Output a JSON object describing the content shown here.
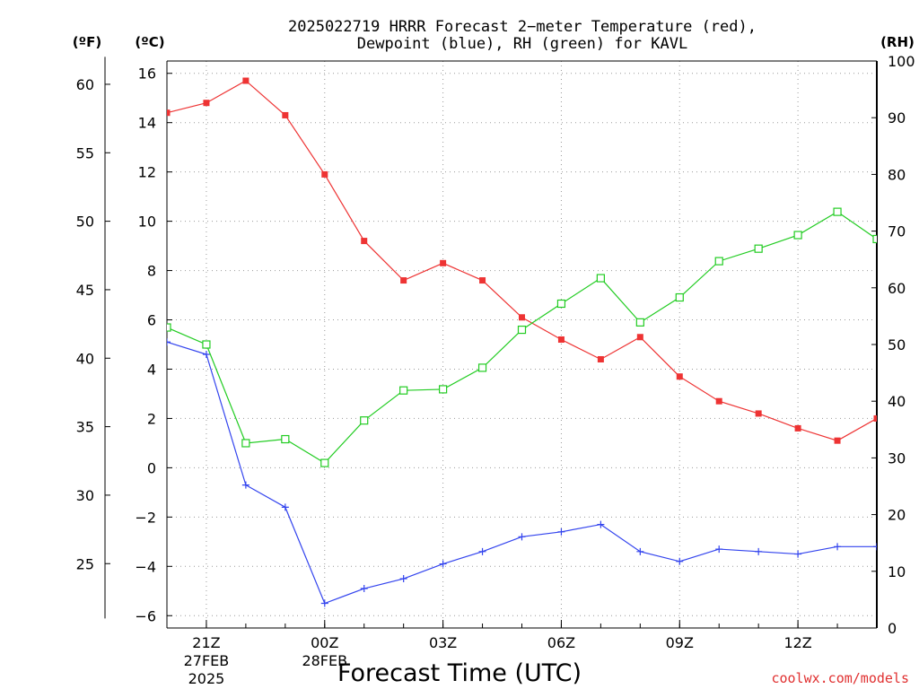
{
  "chart_data": {
    "type": "line",
    "title_line1": "2025022719 HRRR Forecast 2−meter Temperature (red),",
    "title_line2": "Dewpoint (blue), RH (green) for KAVL",
    "xlabel": "Forecast Time (UTC)",
    "unit_f": "(ºF)",
    "unit_c": "(ºC)",
    "unit_rh": "(RH)",
    "credit": "coolwx.com/models",
    "x_hours": [
      20,
      21,
      22,
      23,
      24,
      25,
      26,
      27,
      28,
      29,
      30,
      31,
      32,
      33,
      34,
      35,
      36,
      37,
      38
    ],
    "x_ticks": [
      {
        "h": 21,
        "label": "21Z"
      },
      {
        "h": 24,
        "label": "00Z"
      },
      {
        "h": 27,
        "label": "03Z"
      },
      {
        "h": 30,
        "label": "06Z"
      },
      {
        "h": 33,
        "label": "09Z"
      },
      {
        "h": 36,
        "label": "12Z"
      }
    ],
    "date_labels": [
      {
        "h": 21,
        "lines": [
          "27FEB",
          "2025"
        ]
      },
      {
        "h": 24,
        "lines": [
          "28FEB"
        ]
      }
    ],
    "x_range": [
      20,
      38
    ],
    "ylim_c": [
      -6.5,
      16.5
    ],
    "yticks_c": [
      -6,
      -4,
      -2,
      0,
      2,
      4,
      6,
      8,
      10,
      12,
      14,
      16
    ],
    "yticks_f": [
      25,
      30,
      35,
      40,
      45,
      50,
      55,
      60
    ],
    "ylim_rh": [
      0,
      100
    ],
    "yticks_rh": [
      0,
      10,
      20,
      30,
      40,
      50,
      60,
      70,
      80,
      90,
      100
    ],
    "grid": true,
    "series": [
      {
        "name": "Temperature",
        "axis": "c",
        "color": "#ee3333",
        "marker": "filled-square",
        "values": [
          14.4,
          14.8,
          15.7,
          14.3,
          11.9,
          9.2,
          7.6,
          8.3,
          7.6,
          6.1,
          5.2,
          4.4,
          5.3,
          3.7,
          2.7,
          2.2,
          1.6,
          1.1,
          2.0
        ]
      },
      {
        "name": "Dewpoint",
        "axis": "c",
        "color": "#3344ee",
        "marker": "plus",
        "values": [
          5.1,
          4.6,
          -0.7,
          -1.6,
          -5.5,
          -4.9,
          -4.5,
          -3.9,
          -3.4,
          -2.8,
          -2.6,
          -2.3,
          -3.4,
          -3.8,
          -3.3,
          -3.4,
          -3.5,
          -3.2,
          -3.2
        ]
      },
      {
        "name": "RH",
        "axis": "rh",
        "color": "#22cc22",
        "marker": "open-square",
        "values": [
          53,
          50,
          32.6,
          33.3,
          29.1,
          36.6,
          41.9,
          42.1,
          45.9,
          52.6,
          57.2,
          61.7,
          53.9,
          58.3,
          64.7,
          66.9,
          69.3,
          73.4,
          68.6
        ]
      }
    ]
  }
}
